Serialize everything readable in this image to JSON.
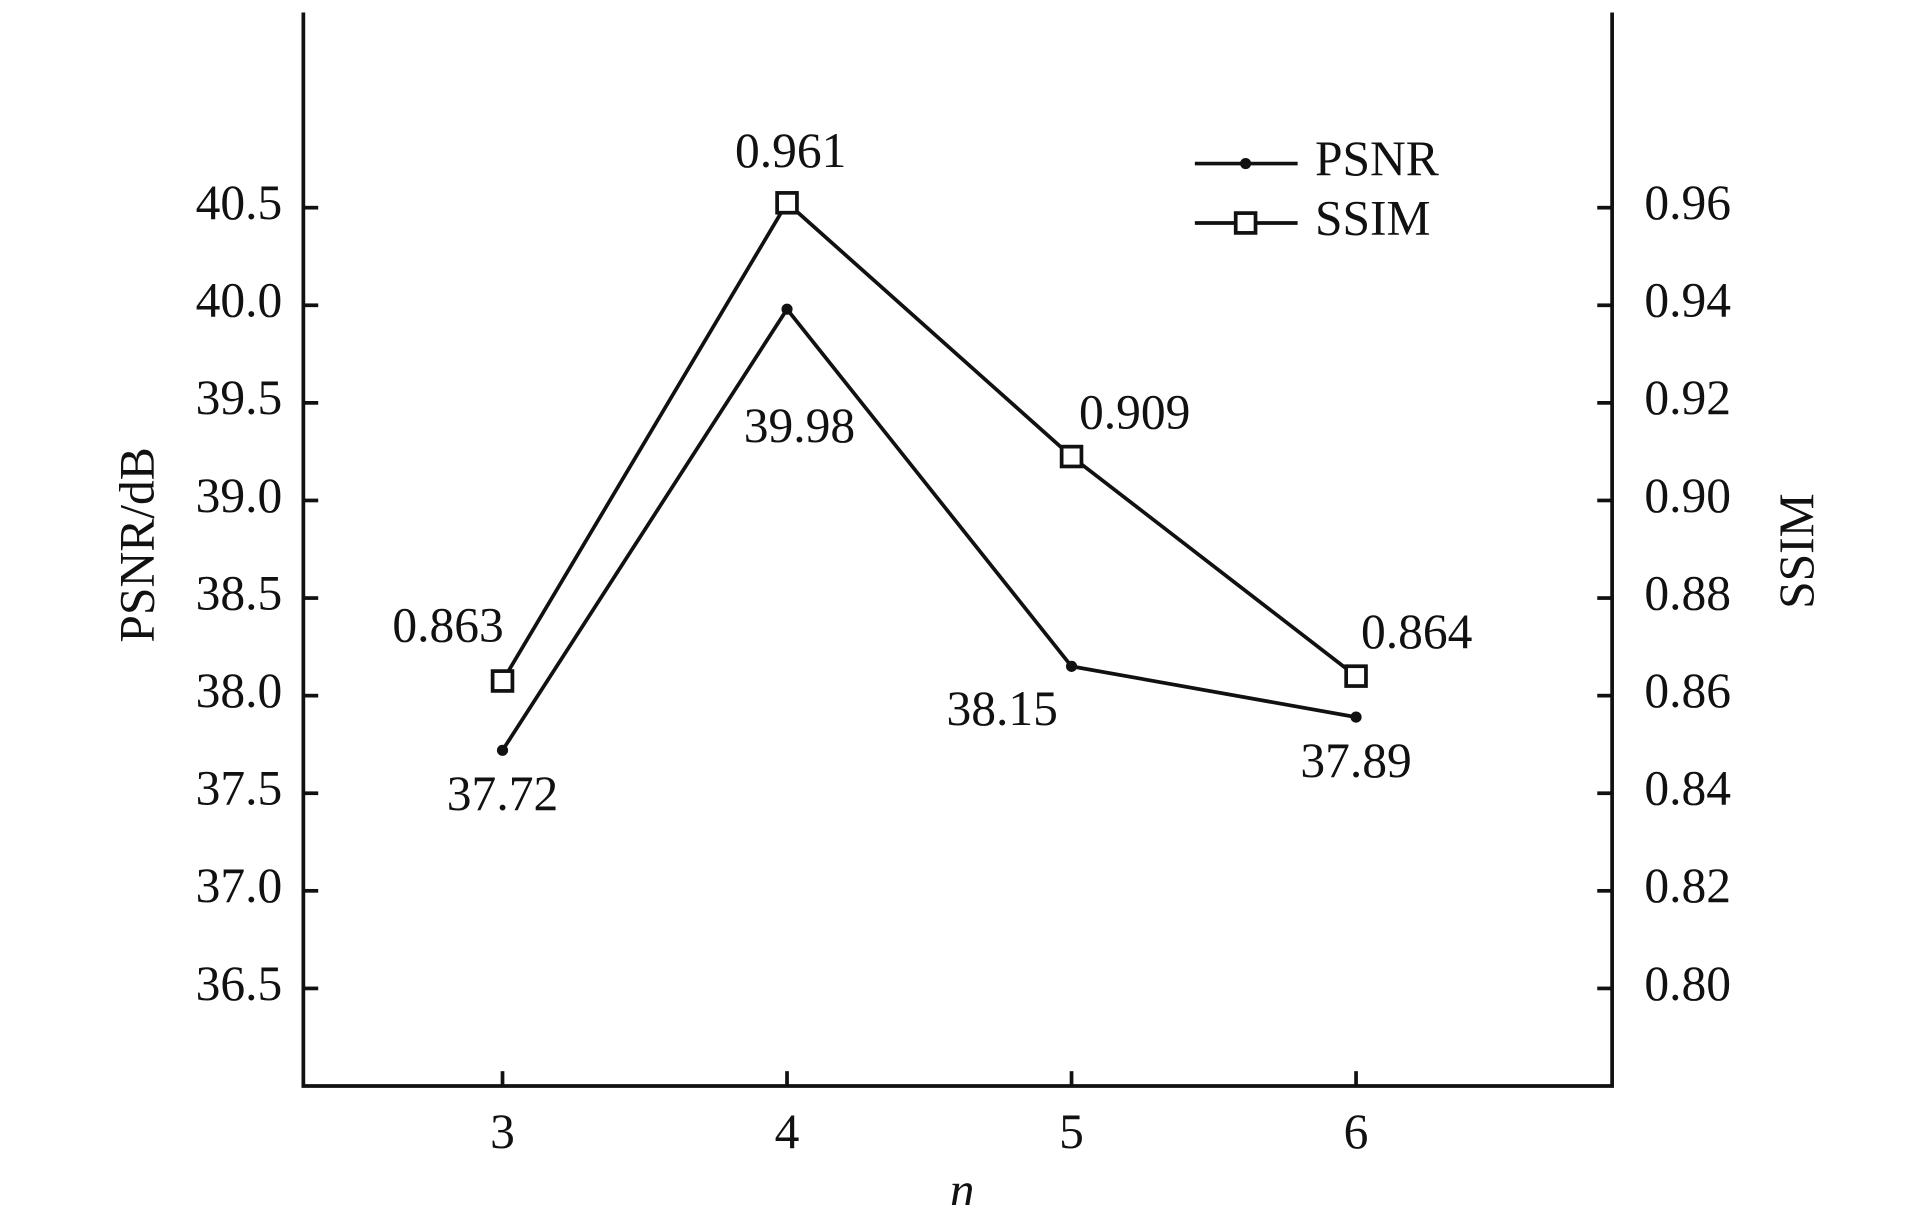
{
  "chart_data": {
    "type": "line",
    "x_label": "n",
    "y_label": "PSNR/dB",
    "y2_label": "SSIM",
    "x": [
      3,
      4,
      5,
      6
    ],
    "xlim": [
      2.3,
      6.9
    ],
    "xticks": [
      3,
      4,
      5,
      6
    ],
    "ylim": [
      36,
      41.5
    ],
    "yticks": [
      36.5,
      {
        "value": 37,
        "label": "37.0"
      },
      37.5,
      {
        "value": 38,
        "label": "38.0"
      },
      38.5,
      {
        "value": 39,
        "label": "39.0"
      },
      39.5,
      {
        "value": 40,
        "label": "40.0"
      },
      40.5
    ],
    "y2lim": [
      0.78,
      1.0
    ],
    "y2ticks": [
      {
        "value": 0.8,
        "label": "0.80"
      },
      0.82,
      0.84,
      0.86,
      0.88,
      {
        "value": 0.9,
        "label": "0.90"
      },
      0.92,
      0.94,
      0.96
    ],
    "legend": "upper right",
    "series": [
      {
        "name": "PSNR",
        "color": "#111111",
        "marker": "dot",
        "values": [
          37.72,
          39.98,
          38.15,
          37.89
        ]
      },
      {
        "name": "SSIM",
        "color": "#111111",
        "marker": "square",
        "axis": "y2",
        "values": [
          0.863,
          0.961,
          0.909,
          0.864
        ]
      }
    ]
  }
}
